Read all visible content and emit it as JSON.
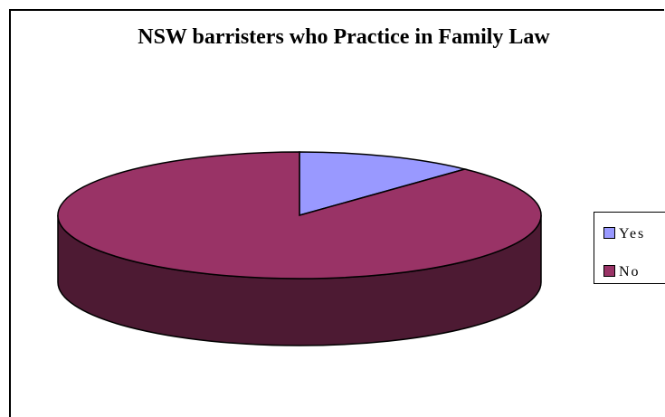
{
  "chart_data": {
    "type": "pie",
    "title": "NSW barristers who Practice in Family Law",
    "slices": [
      {
        "label": "Yes",
        "value": 12,
        "color": "#9999FF"
      },
      {
        "label": "No",
        "value": 88,
        "color": "#993366"
      }
    ],
    "depth_color": "#4D1A33",
    "three_d": true,
    "legend_position": "right"
  }
}
